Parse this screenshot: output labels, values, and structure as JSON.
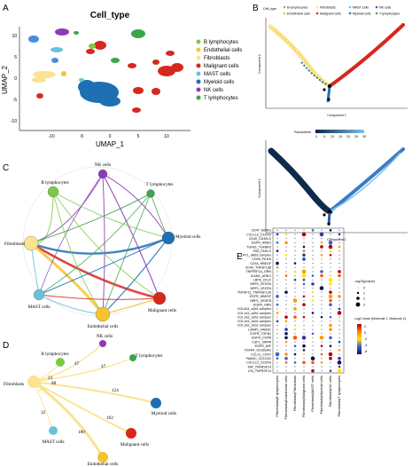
{
  "panels": {
    "a": "A",
    "b": "B",
    "c": "C",
    "d": "D",
    "e": "E"
  },
  "umap": {
    "title": "Cell_type",
    "xlabel": "UMAP_1",
    "ylabel": "UMAP_2",
    "xticks": [
      "-10",
      "-5",
      "0",
      "5",
      "10"
    ],
    "yticks": [
      "10",
      "5",
      "0",
      "-5",
      "-10"
    ],
    "legend": [
      {
        "label": "B lymphocytes",
        "color": "#7ac943"
      },
      {
        "label": "Endothelial cells",
        "color": "#f4c430"
      },
      {
        "label": "Fibroblasts",
        "color": "#fbe38f"
      },
      {
        "label": "Malignant cells",
        "color": "#d7281d"
      },
      {
        "label": "MAST cells",
        "color": "#69c3d8"
      },
      {
        "label": "Myeloid cells",
        "color": "#1f6fb4"
      },
      {
        "label": "NK cells",
        "color": "#8a3cb5"
      },
      {
        "label": "T lymphocytes",
        "color": "#3aa64b"
      }
    ]
  },
  "trajectory": {
    "legend_title": "Cell_type",
    "legend": [
      {
        "label": "B lymphocytes",
        "color": "#7ac943"
      },
      {
        "label": "Fibroblasts",
        "color": "#fbe38f"
      },
      {
        "label": "MAST cells",
        "color": "#69c3d8"
      },
      {
        "label": "NK cells",
        "color": "#8a3cb5"
      },
      {
        "label": "Endothelial cells",
        "color": "#f4c430"
      },
      {
        "label": "Malignant cells",
        "color": "#d7281d"
      },
      {
        "label": "Myeloid cells",
        "color": "#1f6fb4"
      },
      {
        "label": "T lymphocytes",
        "color": "#3aa64b"
      }
    ],
    "xlabel": "Component 1",
    "ylabel": "Component 2",
    "pseudotime_label": "Pseudotime",
    "pseudotime_ticks": [
      "0",
      "5",
      "10",
      "15",
      "20",
      "25",
      "30"
    ]
  },
  "network": {
    "nodes": [
      {
        "id": "nk",
        "label": "NK cells",
        "color": "#8a3cb5"
      },
      {
        "id": "b",
        "label": "B lymphocytes",
        "color": "#7ac943"
      },
      {
        "id": "t",
        "label": "T lymphocytes",
        "color": "#3aa64b"
      },
      {
        "id": "fib",
        "label": "Fibroblasts",
        "color": "#fbe38f"
      },
      {
        "id": "mye",
        "label": "Myeloid cells",
        "color": "#1f6fb4"
      },
      {
        "id": "mast",
        "label": "MAST cells",
        "color": "#69c3d8"
      },
      {
        "id": "mal",
        "label": "Malignant cells",
        "color": "#d7281d"
      },
      {
        "id": "endo",
        "label": "Endothelial cells",
        "color": "#f4c430"
      }
    ]
  },
  "fibro_network": {
    "nodes": [
      {
        "id": "nk",
        "label": "NK cells",
        "color": "#8a3cb5"
      },
      {
        "id": "b",
        "label": "B lymphocytes",
        "color": "#7ac943"
      },
      {
        "id": "t",
        "label": "T lymphocytes",
        "color": "#3aa64b"
      },
      {
        "id": "fib",
        "label": "Fibroblasts",
        "color": "#fbe38f"
      },
      {
        "id": "mye",
        "label": "Myeloid cells",
        "color": "#1f6fb4"
      },
      {
        "id": "mast",
        "label": "MAST cells",
        "color": "#69c3d8"
      },
      {
        "id": "mal",
        "label": "Malignant cells",
        "color": "#d7281d"
      },
      {
        "id": "endo",
        "label": "Endothelial cells",
        "color": "#f4c430"
      }
    ],
    "edges": [
      {
        "to": "nk",
        "weight": "47"
      },
      {
        "to": "b",
        "weight": "23"
      },
      {
        "to": "t",
        "weight": "47"
      },
      {
        "to": "fib",
        "weight": "88"
      },
      {
        "to": "mye",
        "weight": "124"
      },
      {
        "to": "mal",
        "weight": "102"
      },
      {
        "to": "mast",
        "weight": "32"
      },
      {
        "to": "endo",
        "weight": "180"
      }
    ]
  },
  "dotplot": {
    "pairs": [
      "CD47_SIRPG",
      "CXCL12_CXCR3",
      "CD40_CD40LG",
      "EGFR_AREG",
      "TGFB1_TGFBR3",
      "FAS_FASLG",
      "THY1_aMb2 complex",
      "CD99_PILRA",
      "CD44_HBEGF",
      "CD40_TNFSF13B",
      "TNFRSF1A_GRN",
      "ICAM1_AREG",
      "LRP6_CKLF",
      "NRP2_VEGFA",
      "NRP1_VEGFA",
      "TNFSF12_TNFRSF12A",
      "EGFR_HBEGF",
      "NRP1_VEGFB",
      "EGFR_GRN",
      "COL4A1_a2b1 complex",
      "COL1A1_a2b1 complex",
      "COL1A2_a2b1 complex",
      "COL1A1_a1b1 complex",
      "COL1A2_a1b1 complex",
      "LAMP1_FAM3C",
      "EGFR_TGFB1",
      "EGFR_COPA",
      "CSF1_SIRPA",
      "EGFR_MIF",
      "FGFR4_SCGB3A1",
      "CCL21_CCR7",
      "FAM3C_CLEC2D",
      "CXCL12_CXCR4",
      "MIF_TNFRSF14",
      "LTA_TNFRSF14"
    ],
    "columns": [
      "Fibroblasts|B lymphocytes",
      "Fibroblasts|Endothelial cells",
      "Fibroblasts|Fibroblasts",
      "Fibroblasts|Malignant cells",
      "Fibroblasts|MAST cells",
      "Fibroblasts|Myeloid cells",
      "Fibroblasts|NK cells",
      "Fibroblasts|T lymphocytes"
    ],
    "size_legend_title": "-log10(pvalue)",
    "size_legend_values": [
      "0",
      "1",
      "2",
      "3"
    ],
    "color_legend_title": "Log2 mean (Molecule 1, Molecule 2)",
    "color_legend_ticks": [
      "2",
      "0",
      "-2",
      "-4",
      "-6"
    ]
  }
}
